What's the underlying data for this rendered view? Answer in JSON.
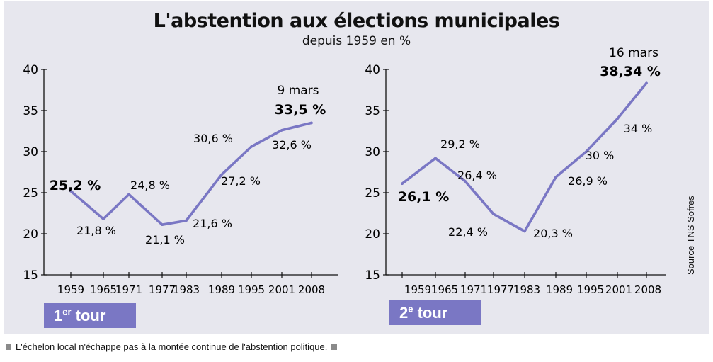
{
  "title": "L'abstention aux élections municipales",
  "subtitle": "depuis 1959 en %",
  "source": "Source TNS Sofres",
  "caption": "L'échelon local n'échappe pas à la montée continue de l'abstention politique.",
  "colors": {
    "line": "#7a77c4",
    "badge": "#7a77c4",
    "panel": "#e7e7ee"
  },
  "chart_data": [
    {
      "type": "line",
      "tour_label": "1",
      "tour_sup": "er",
      "tour_word": " tour",
      "x": [
        "1959",
        "1965",
        "1971",
        "1977",
        "1983",
        "1989",
        "1995",
        "2001",
        "2008"
      ],
      "values": [
        25.2,
        21.8,
        24.8,
        21.1,
        21.6,
        27.2,
        30.6,
        32.6,
        33.5
      ],
      "labels": [
        "25,2 %",
        "21,8 %",
        "24,8 %",
        "21,1 %",
        "21,6 %",
        "27,2 %",
        "30,6 %",
        "32,6 %",
        "33,5 %"
      ],
      "last_date": "9 mars",
      "ylim": [
        15,
        40
      ],
      "yticks": [
        15,
        20,
        25,
        30,
        35,
        40
      ]
    },
    {
      "type": "line",
      "tour_label": "2",
      "tour_sup": "e",
      "tour_word": " tour",
      "x": [
        "1959",
        "1965",
        "1971",
        "1977",
        "1983",
        "1989",
        "1995",
        "2001",
        "2008"
      ],
      "values": [
        26.1,
        29.2,
        26.4,
        22.4,
        20.3,
        26.9,
        30,
        34,
        38.34
      ],
      "labels": [
        "26,1 %",
        "29,2 %",
        "26,4 %",
        "22,4 %",
        "20,3 %",
        "26,9 %",
        "30 %",
        "34 %",
        "38,34 %"
      ],
      "last_date": "16 mars",
      "ylim": [
        15,
        40
      ],
      "yticks": [
        15,
        20,
        25,
        30,
        35,
        40
      ]
    }
  ]
}
